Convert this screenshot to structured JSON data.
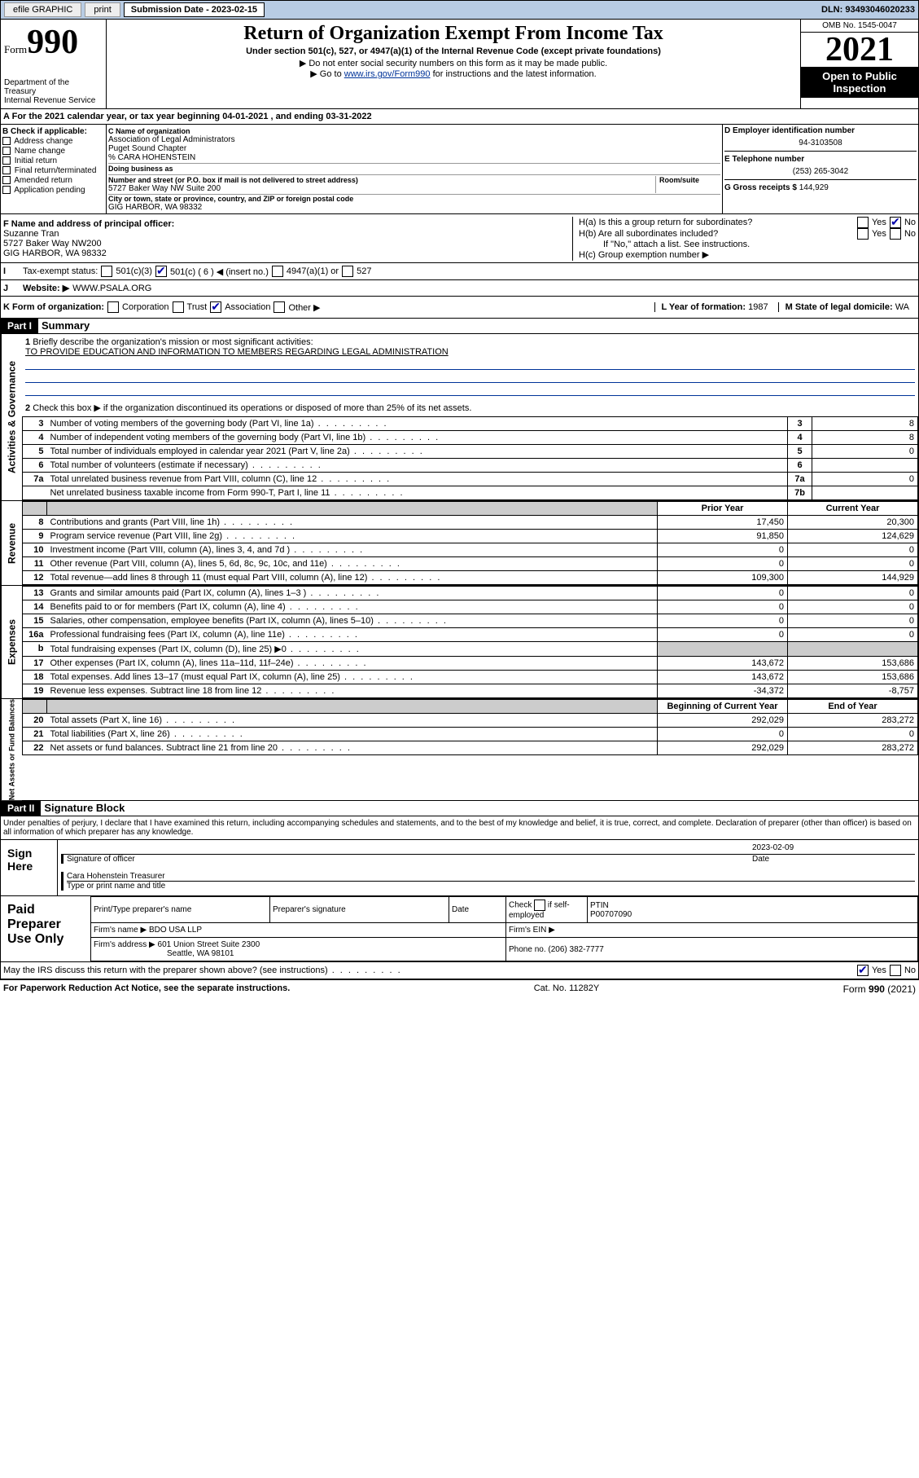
{
  "topbar": {
    "efile": "efile GRAPHIC",
    "print": "print",
    "sub_label": "Submission Date - 2023-02-15",
    "dln": "DLN: 93493046020233"
  },
  "header": {
    "form_word": "Form",
    "form_num": "990",
    "dept": "Department of the Treasury",
    "irs": "Internal Revenue Service",
    "title": "Return of Organization Exempt From Income Tax",
    "subtitle": "Under section 501(c), 527, or 4947(a)(1) of the Internal Revenue Code (except private foundations)",
    "note1": "▶ Do not enter social security numbers on this form as it may be made public.",
    "note2_pre": "▶ Go to ",
    "note2_link": "www.irs.gov/Form990",
    "note2_post": " for instructions and the latest information.",
    "omb": "OMB No. 1545-0047",
    "year": "2021",
    "inspect1": "Open to Public",
    "inspect2": "Inspection"
  },
  "A": {
    "text": "For the 2021 calendar year, or tax year beginning 04-01-2021    , and ending 03-31-2022"
  },
  "B": {
    "label": "B Check if applicable:",
    "items": [
      "Address change",
      "Name change",
      "Initial return",
      "Final return/terminated",
      "Amended return",
      "Application pending"
    ]
  },
  "C": {
    "name_lbl": "C Name of organization",
    "name1": "Association of Legal Administrators",
    "name2": "Puget Sound Chapter",
    "name3": "% CARA HOHENSTEIN",
    "dba_lbl": "Doing business as",
    "addr_lbl": "Number and street (or P.O. box if mail is not delivered to street address)",
    "room_lbl": "Room/suite",
    "addr": "5727 Baker Way NW Suite 200",
    "city_lbl": "City or town, state or province, country, and ZIP or foreign postal code",
    "city": "GIG HARBOR, WA  98332"
  },
  "D": {
    "lbl": "D Employer identification number",
    "val": "94-3103508"
  },
  "E": {
    "lbl": "E Telephone number",
    "val": "(253) 265-3042"
  },
  "G": {
    "lbl": "G Gross receipts $",
    "val": "144,929"
  },
  "F": {
    "lbl": "F  Name and address of principal officer:",
    "name": "Suzanne Tran",
    "addr": "5727 Baker Way NW200",
    "city": "GIG HARBOR, WA  98332"
  },
  "H": {
    "a": "H(a)  Is this a group return for subordinates?",
    "b": "H(b)  Are all subordinates included?",
    "b_note": "If \"No,\" attach a list. See instructions.",
    "c": "H(c)  Group exemption number ▶",
    "yes": "Yes",
    "no": "No"
  },
  "I": {
    "lbl": "Tax-exempt status:",
    "o1": "501(c)(3)",
    "o2": "501(c) ( 6 ) ◀ (insert no.)",
    "o3": "4947(a)(1) or",
    "o4": "527"
  },
  "J": {
    "lbl": "Website: ▶",
    "val": "WWW.PSALA.ORG"
  },
  "K": {
    "lbl": "K Form of organization:",
    "o1": "Corporation",
    "o2": "Trust",
    "o3": "Association",
    "o4": "Other ▶"
  },
  "L": {
    "lbl": "L Year of formation:",
    "val": "1987"
  },
  "M": {
    "lbl": "M State of legal domicile:",
    "val": "WA"
  },
  "parts": {
    "p1": "Part I",
    "p1t": "Summary",
    "p2": "Part II",
    "p2t": "Signature Block"
  },
  "summary": {
    "q1": "Briefly describe the organization's mission or most significant activities:",
    "mission": "TO PROVIDE EDUCATION AND INFORMATION TO MEMBERS REGARDING LEGAL ADMINISTRATION",
    "q2": "Check this box ▶       if the organization discontinued its operations or disposed of more than 25% of its net assets.",
    "rows_gov": [
      {
        "n": "3",
        "t": "Number of voting members of the governing body (Part VI, line 1a)",
        "b": "3",
        "v": "8"
      },
      {
        "n": "4",
        "t": "Number of independent voting members of the governing body (Part VI, line 1b)",
        "b": "4",
        "v": "8"
      },
      {
        "n": "5",
        "t": "Total number of individuals employed in calendar year 2021 (Part V, line 2a)",
        "b": "5",
        "v": "0"
      },
      {
        "n": "6",
        "t": "Total number of volunteers (estimate if necessary)",
        "b": "6",
        "v": ""
      },
      {
        "n": "7a",
        "t": "Total unrelated business revenue from Part VIII, column (C), line 12",
        "b": "7a",
        "v": "0"
      },
      {
        "n": "",
        "t": "Net unrelated business taxable income from Form 990-T, Part I, line 11",
        "b": "7b",
        "v": ""
      }
    ],
    "col_prior": "Prior Year",
    "col_curr": "Current Year",
    "rows_rev": [
      {
        "n": "8",
        "t": "Contributions and grants (Part VIII, line 1h)",
        "p": "17,450",
        "c": "20,300"
      },
      {
        "n": "9",
        "t": "Program service revenue (Part VIII, line 2g)",
        "p": "91,850",
        "c": "124,629"
      },
      {
        "n": "10",
        "t": "Investment income (Part VIII, column (A), lines 3, 4, and 7d )",
        "p": "0",
        "c": "0"
      },
      {
        "n": "11",
        "t": "Other revenue (Part VIII, column (A), lines 5, 6d, 8c, 9c, 10c, and 11e)",
        "p": "0",
        "c": "0"
      },
      {
        "n": "12",
        "t": "Total revenue—add lines 8 through 11 (must equal Part VIII, column (A), line 12)",
        "p": "109,300",
        "c": "144,929"
      }
    ],
    "rows_exp": [
      {
        "n": "13",
        "t": "Grants and similar amounts paid (Part IX, column (A), lines 1–3 )",
        "p": "0",
        "c": "0"
      },
      {
        "n": "14",
        "t": "Benefits paid to or for members (Part IX, column (A), line 4)",
        "p": "0",
        "c": "0"
      },
      {
        "n": "15",
        "t": "Salaries, other compensation, employee benefits (Part IX, column (A), lines 5–10)",
        "p": "0",
        "c": "0"
      },
      {
        "n": "16a",
        "t": "Professional fundraising fees (Part IX, column (A), line 11e)",
        "p": "0",
        "c": "0"
      },
      {
        "n": "b",
        "t": "Total fundraising expenses (Part IX, column (D), line 25) ▶0",
        "p": "",
        "c": "",
        "grey": true
      },
      {
        "n": "17",
        "t": "Other expenses (Part IX, column (A), lines 11a–11d, 11f–24e)",
        "p": "143,672",
        "c": "153,686"
      },
      {
        "n": "18",
        "t": "Total expenses. Add lines 13–17 (must equal Part IX, column (A), line 25)",
        "p": "143,672",
        "c": "153,686"
      },
      {
        "n": "19",
        "t": "Revenue less expenses. Subtract line 18 from line 12",
        "p": "-34,372",
        "c": "-8,757"
      }
    ],
    "col_beg": "Beginning of Current Year",
    "col_end": "End of Year",
    "rows_net": [
      {
        "n": "20",
        "t": "Total assets (Part X, line 16)",
        "p": "292,029",
        "c": "283,272"
      },
      {
        "n": "21",
        "t": "Total liabilities (Part X, line 26)",
        "p": "0",
        "c": "0"
      },
      {
        "n": "22",
        "t": "Net assets or fund balances. Subtract line 21 from line 20",
        "p": "292,029",
        "c": "283,272"
      }
    ]
  },
  "sig": {
    "decl": "Under penalties of perjury, I declare that I have examined this return, including accompanying schedules and statements, and to the best of my knowledge and belief, it is true, correct, and complete. Declaration of preparer (other than officer) is based on all information of which preparer has any knowledge.",
    "sign": "Sign Here",
    "date": "2023-02-09",
    "sig_lbl": "Signature of officer",
    "date_lbl": "Date",
    "name": "Cara Hohenstein Treasurer",
    "name_lbl": "Type or print name and title",
    "paid": "Paid Preparer Use Only",
    "h1": "Print/Type preparer's name",
    "h2": "Preparer's signature",
    "h3": "Date",
    "h4_pre": "Check",
    "h4_post": "if self-employed",
    "h5": "PTIN",
    "ptin": "P00707090",
    "firm_lbl": "Firm's name   ▶",
    "firm": "BDO USA LLP",
    "ein_lbl": "Firm's EIN ▶",
    "faddr_lbl": "Firm's address ▶",
    "faddr1": "601 Union Street Suite 2300",
    "faddr2": "Seattle, WA  98101",
    "phone_lbl": "Phone no.",
    "phone": "(206) 382-7777",
    "discuss": "May the IRS discuss this return with the preparer shown above? (see instructions)"
  },
  "footer": {
    "l": "For Paperwork Reduction Act Notice, see the separate instructions.",
    "c": "Cat. No. 11282Y",
    "r": "Form 990 (2021)"
  },
  "vtabs": {
    "gov": "Activities & Governance",
    "rev": "Revenue",
    "exp": "Expenses",
    "net": "Net Assets or Fund Balances"
  }
}
